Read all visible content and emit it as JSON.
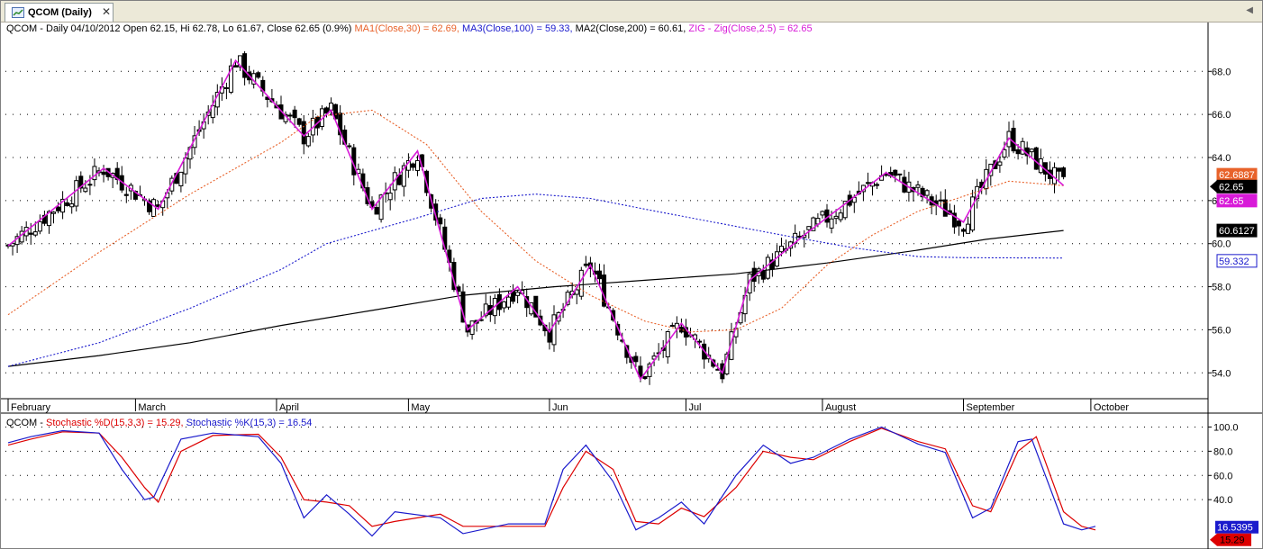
{
  "window": {
    "tab_label": "QCOM (Daily)",
    "close_glyph": "✕",
    "tab_icon": "chart-icon",
    "scroll_glyph": "◀"
  },
  "legend_price": {
    "ohlc": "QCOM - Daily 04/10/2012 Open 62.15, Hi 62.78, Lo 61.67, Close 62.65 (0.9%)",
    "ma1": "MA1(Close,30) = 62.69,",
    "ma3": "MA3(Close,100) = 59.33,",
    "ma2": "MA2(Close,200) = 60.61,",
    "zig": "ZIG - Zig(Close,2.5) = 62.65"
  },
  "legend_stoch": {
    "prefix": "QCOM -",
    "d": "Stochastic %D(15,3,3) = 15.29,",
    "k": "Stochastic %K(15,3) = 16.54"
  },
  "colors": {
    "ma1": "#e8622a",
    "ma3": "#1a1acc",
    "ma2": "#000000",
    "zig": "#d81ad8",
    "stoch_d": "#dd0000",
    "stoch_k": "#1a1acc"
  },
  "chart_data": [
    {
      "type": "candlestick",
      "title": "QCOM (Daily)",
      "ylim": [
        52.8,
        69.6
      ],
      "yticks": [
        "54.0",
        "56.0",
        "58.0",
        "60.0",
        "62.0",
        "64.0",
        "66.0",
        "68.0"
      ],
      "x_labels": [
        "February",
        "March",
        "April",
        "May",
        "Jun",
        "Jul",
        "August",
        "September",
        "October"
      ],
      "grid": "dotted horizontal",
      "last_values": {
        "ma1": "62.6887",
        "close": "62.65",
        "zig": "62.65",
        "ma2": "60.6127",
        "ma3": "59.332"
      },
      "zigzag": [
        [
          0,
          59.9
        ],
        [
          21,
          63.5
        ],
        [
          33,
          61.6
        ],
        [
          50,
          68.5
        ],
        [
          65,
          65.0
        ],
        [
          71,
          66.2
        ],
        [
          80,
          61.6
        ],
        [
          90,
          64.3
        ],
        [
          101,
          56.0
        ],
        [
          112,
          58.0
        ],
        [
          119,
          55.9
        ],
        [
          128,
          59.0
        ],
        [
          139,
          53.7
        ],
        [
          148,
          56.3
        ],
        [
          157,
          54.0
        ],
        [
          163,
          58.3
        ],
        [
          175,
          60.4
        ],
        [
          193,
          63.3
        ],
        [
          210,
          61.0
        ],
        [
          220,
          64.9
        ],
        [
          232,
          62.7
        ]
      ],
      "ma1": [
        [
          0,
          56.7
        ],
        [
          20,
          59.6
        ],
        [
          40,
          62.3
        ],
        [
          60,
          64.7
        ],
        [
          68,
          65.9
        ],
        [
          80,
          66.2
        ],
        [
          92,
          64.6
        ],
        [
          104,
          61.5
        ],
        [
          116,
          59.2
        ],
        [
          128,
          57.6
        ],
        [
          140,
          56.4
        ],
        [
          150,
          55.9
        ],
        [
          160,
          56.0
        ],
        [
          170,
          57.0
        ],
        [
          180,
          59.0
        ],
        [
          190,
          60.4
        ],
        [
          200,
          61.5
        ],
        [
          210,
          62.2
        ],
        [
          220,
          62.9
        ],
        [
          232,
          62.69
        ]
      ],
      "ma3": [
        [
          0,
          54.3
        ],
        [
          20,
          55.4
        ],
        [
          40,
          57.0
        ],
        [
          60,
          58.8
        ],
        [
          70,
          60.0
        ],
        [
          90,
          61.2
        ],
        [
          104,
          62.1
        ],
        [
          116,
          62.3
        ],
        [
          128,
          62.1
        ],
        [
          140,
          61.6
        ],
        [
          155,
          61.0
        ],
        [
          170,
          60.4
        ],
        [
          186,
          59.8
        ],
        [
          200,
          59.4
        ],
        [
          210,
          59.35
        ],
        [
          232,
          59.33
        ]
      ],
      "ma2": [
        [
          0,
          54.3
        ],
        [
          20,
          54.8
        ],
        [
          40,
          55.4
        ],
        [
          60,
          56.2
        ],
        [
          80,
          56.9
        ],
        [
          100,
          57.6
        ],
        [
          120,
          58.0
        ],
        [
          140,
          58.3
        ],
        [
          160,
          58.6
        ],
        [
          180,
          59.1
        ],
        [
          200,
          59.7
        ],
        [
          215,
          60.2
        ],
        [
          232,
          60.61
        ]
      ]
    },
    {
      "type": "line",
      "title": "Stochastic",
      "ylim": [
        0,
        110
      ],
      "yticks": [
        "40.0",
        "60.0",
        "80.0",
        "100.0"
      ],
      "last_values": {
        "k": "16.5395",
        "d": "15.29"
      },
      "series": [
        {
          "name": "Stochastic %K(15,3)",
          "values": [
            [
              0,
              87
            ],
            [
              5,
              92
            ],
            [
              12,
              97
            ],
            [
              20,
              95
            ],
            [
              25,
              65
            ],
            [
              30,
              40
            ],
            [
              32,
              42
            ],
            [
              38,
              90
            ],
            [
              45,
              95
            ],
            [
              55,
              92
            ],
            [
              60,
              70
            ],
            [
              65,
              25
            ],
            [
              70,
              44
            ],
            [
              75,
              28
            ],
            [
              80,
              10
            ],
            [
              85,
              30
            ],
            [
              95,
              25
            ],
            [
              100,
              12
            ],
            [
              110,
              20
            ],
            [
              118,
              20
            ],
            [
              122,
              65
            ],
            [
              127,
              85
            ],
            [
              133,
              55
            ],
            [
              138,
              15
            ],
            [
              143,
              25
            ],
            [
              148,
              38
            ],
            [
              153,
              20
            ],
            [
              160,
              60
            ],
            [
              166,
              85
            ],
            [
              172,
              70
            ],
            [
              177,
              75
            ],
            [
              185,
              90
            ],
            [
              192,
              100
            ],
            [
              200,
              86
            ],
            [
              206,
              79
            ],
            [
              212,
              25
            ],
            [
              216,
              33
            ],
            [
              222,
              88
            ],
            [
              225,
              90
            ],
            [
              232,
              20
            ],
            [
              236,
              15
            ],
            [
              239,
              18
            ]
          ]
        },
        {
          "name": "Stochastic %D(15,3,3)",
          "values": [
            [
              0,
              85
            ],
            [
              5,
              90
            ],
            [
              12,
              96
            ],
            [
              20,
              95
            ],
            [
              25,
              75
            ],
            [
              30,
              50
            ],
            [
              33,
              38
            ],
            [
              38,
              80
            ],
            [
              45,
              93
            ],
            [
              55,
              94
            ],
            [
              60,
              75
            ],
            [
              65,
              40
            ],
            [
              70,
              38
            ],
            [
              75,
              35
            ],
            [
              80,
              18
            ],
            [
              85,
              22
            ],
            [
              95,
              28
            ],
            [
              100,
              18
            ],
            [
              110,
              18
            ],
            [
              118,
              18
            ],
            [
              122,
              50
            ],
            [
              127,
              80
            ],
            [
              133,
              65
            ],
            [
              138,
              22
            ],
            [
              143,
              20
            ],
            [
              148,
              33
            ],
            [
              153,
              26
            ],
            [
              160,
              50
            ],
            [
              166,
              80
            ],
            [
              172,
              75
            ],
            [
              177,
              73
            ],
            [
              185,
              88
            ],
            [
              192,
              99
            ],
            [
              200,
              88
            ],
            [
              206,
              82
            ],
            [
              212,
              35
            ],
            [
              216,
              30
            ],
            [
              222,
              80
            ],
            [
              226,
              92
            ],
            [
              232,
              30
            ],
            [
              236,
              18
            ],
            [
              239,
              15
            ]
          ]
        }
      ]
    }
  ]
}
